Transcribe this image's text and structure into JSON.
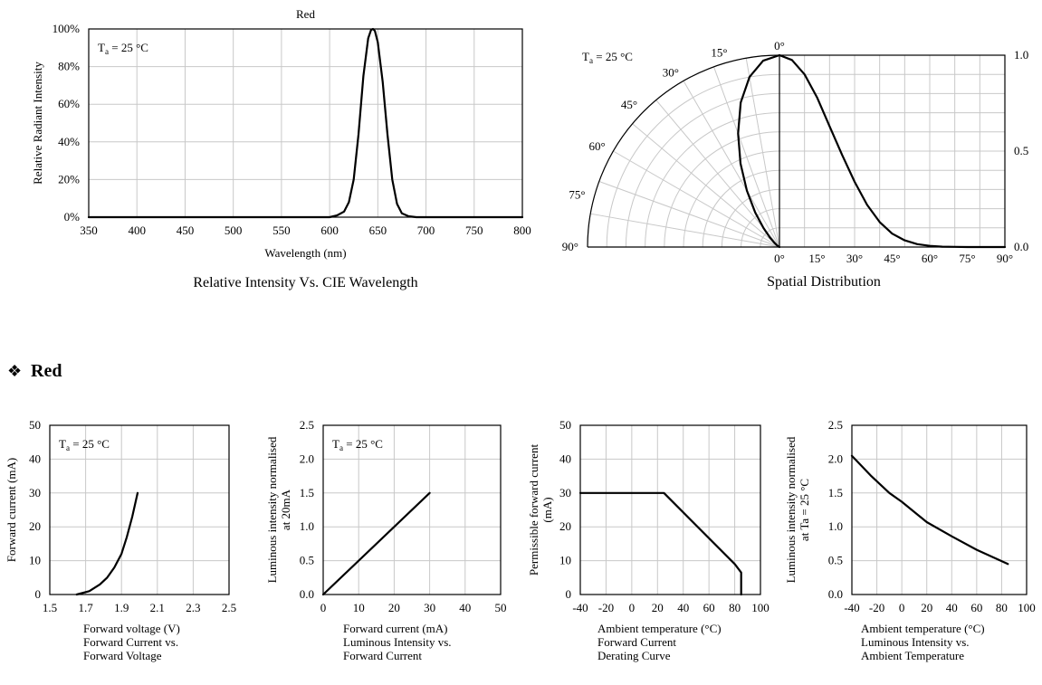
{
  "section_header": {
    "bullet": "❖",
    "title": "Red"
  },
  "chart_data": [
    {
      "id": "spectrum",
      "type": "line",
      "title": "Red",
      "caption": "Relative Intensity Vs. CIE Wavelength",
      "xlabel": "Wavelength (nm)",
      "ylabel": "Relative  Radiant Intensity",
      "annotation": "Ta = 25 °C",
      "xlim": [
        350,
        800
      ],
      "ylim": [
        0,
        100
      ],
      "xticks": [
        350,
        400,
        450,
        500,
        550,
        600,
        650,
        700,
        750,
        800
      ],
      "yticks": [
        0,
        20,
        40,
        60,
        80,
        100
      ],
      "ytick_labels": [
        "0%",
        "20%",
        "40%",
        "60%",
        "80%",
        "100%"
      ],
      "grid": true,
      "x": [
        350,
        600,
        608,
        615,
        620,
        625,
        630,
        635,
        640,
        643,
        645,
        647,
        650,
        655,
        660,
        665,
        670,
        675,
        682,
        690,
        800
      ],
      "y": [
        0,
        0,
        1,
        3,
        8,
        20,
        44,
        75,
        95,
        99.5,
        100,
        99,
        93,
        72,
        44,
        20,
        7,
        2,
        0.5,
        0,
        0
      ]
    },
    {
      "id": "spatial",
      "type": "line",
      "caption": "Spatial Distribution",
      "annotation": "Ta = 25 °C",
      "angle_labels": [
        "0°",
        "15°",
        "30°",
        "45°",
        "60°",
        "75°",
        "90°"
      ],
      "xticks": [
        0,
        15,
        30,
        45,
        60,
        75,
        90
      ],
      "xtick_labels": [
        "0°",
        "15°",
        "30°",
        "45°",
        "60°",
        "75°",
        "90°"
      ],
      "xlim": [
        0,
        90
      ],
      "ylim": [
        0,
        1
      ],
      "yticks": [
        0,
        0.5,
        1
      ],
      "ytick_labels": [
        "0.0",
        "0.5",
        "1.0"
      ],
      "grid": true,
      "x": [
        0,
        5,
        10,
        15,
        20,
        25,
        30,
        35,
        40,
        45,
        50,
        55,
        60,
        65,
        70,
        75,
        80,
        85,
        90
      ],
      "y": [
        1.0,
        0.975,
        0.9,
        0.78,
        0.63,
        0.48,
        0.34,
        0.22,
        0.13,
        0.07,
        0.035,
        0.015,
        0.006,
        0.002,
        0.001,
        0,
        0,
        0,
        0
      ]
    },
    {
      "id": "iv",
      "type": "line",
      "caption": [
        "Forward Current vs.",
        "Forward Voltage"
      ],
      "xlabel": "Forward voltage (V)",
      "ylabel": "Forward current (mA)",
      "annotation": "Ta = 25 °C",
      "xlim": [
        1.5,
        2.5
      ],
      "ylim": [
        0,
        50
      ],
      "xticks": [
        1.5,
        1.7,
        1.9,
        2.1,
        2.3,
        2.5
      ],
      "xtick_labels": [
        "1.5",
        "1.7",
        "1.9",
        "2.1",
        "2.3",
        "2.5"
      ],
      "yticks": [
        0,
        10,
        20,
        30,
        40,
        50
      ],
      "grid": true,
      "x": [
        1.65,
        1.72,
        1.78,
        1.82,
        1.86,
        1.9,
        1.93,
        1.96,
        1.99
      ],
      "y": [
        0,
        1,
        3,
        5,
        8,
        12,
        17,
        23,
        30
      ]
    },
    {
      "id": "iv_lum",
      "type": "line",
      "caption": [
        "Luminous Intensity vs.",
        "Forward Current"
      ],
      "xlabel": "Forward current (mA)",
      "ylabel": [
        "Luminous intensity normalised",
        "at 20mA"
      ],
      "annotation": "Ta = 25 °C",
      "xlim": [
        0,
        50
      ],
      "ylim": [
        0,
        2.5
      ],
      "xticks": [
        0,
        10,
        20,
        30,
        40,
        50
      ],
      "yticks": [
        0,
        0.5,
        1,
        1.5,
        2,
        2.5
      ],
      "ytick_labels": [
        "0.0",
        "0.5",
        "1.0",
        "1.5",
        "2.0",
        "2.5"
      ],
      "grid": true,
      "x": [
        0,
        30
      ],
      "y": [
        0,
        1.5
      ]
    },
    {
      "id": "derating",
      "type": "line",
      "caption": [
        "Forward Current",
        "Derating  Curve"
      ],
      "xlabel": "Ambient temperature (°C)",
      "ylabel": [
        "Permissible forward current",
        "(mA)"
      ],
      "xlim": [
        -40,
        100
      ],
      "ylim": [
        0,
        50
      ],
      "xticks": [
        -40,
        -20,
        0,
        20,
        40,
        60,
        80,
        100
      ],
      "yticks": [
        0,
        10,
        20,
        30,
        40,
        50
      ],
      "grid": true,
      "x": [
        -40,
        25,
        80,
        85,
        85
      ],
      "y": [
        30,
        30,
        9,
        6.5,
        0
      ]
    },
    {
      "id": "temp_lum",
      "type": "line",
      "caption": [
        "Luminous Intensity vs.",
        "Ambient Temperature"
      ],
      "xlabel": "Ambient temperature (°C)",
      "ylabel": [
        "Luminous intensity normalised",
        "at Ta = 25 °C"
      ],
      "xlim": [
        -40,
        100
      ],
      "ylim": [
        0,
        2.5
      ],
      "xticks": [
        -40,
        -20,
        0,
        20,
        40,
        60,
        80,
        100
      ],
      "yticks": [
        0,
        0.5,
        1,
        1.5,
        2,
        2.5
      ],
      "ytick_labels": [
        "0.0",
        "0.5",
        "1.0",
        "1.5",
        "2.0",
        "2.5"
      ],
      "grid": true,
      "x": [
        -40,
        -25,
        -10,
        0,
        20,
        40,
        60,
        85
      ],
      "y": [
        2.05,
        1.76,
        1.5,
        1.37,
        1.07,
        0.86,
        0.66,
        0.45
      ]
    }
  ]
}
